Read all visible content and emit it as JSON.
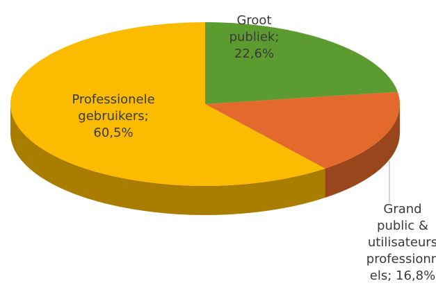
{
  "chart_data": {
    "type": "pie",
    "values": [
      22.6,
      16.8,
      60.5
    ],
    "value_labels": [
      "Groot publiek; 22,6%",
      "Grand public & utilisateurs professionnels; 16,8%",
      "Professionele gebruikers; 60,5%"
    ],
    "colors": [
      "#5b9b2f",
      "#e4692c",
      "#fbbb00"
    ]
  }
}
